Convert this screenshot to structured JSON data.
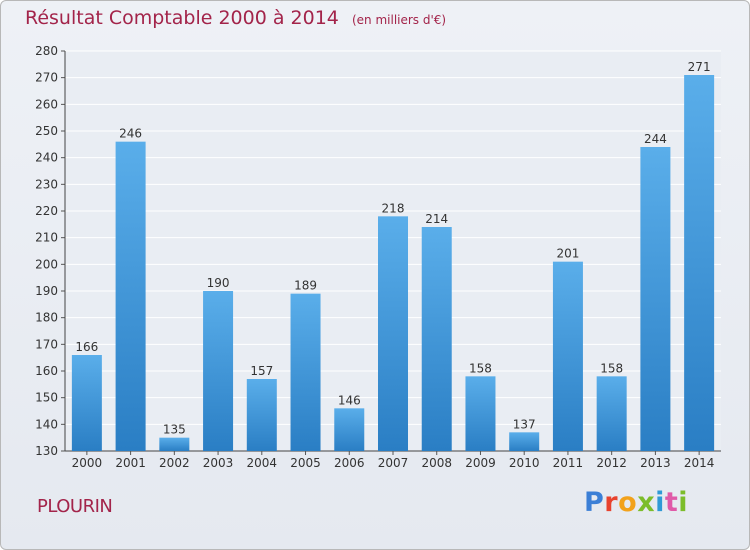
{
  "title": "Résultat Comptable 2000 à 2014",
  "subtitle": "(en milliers d'€)",
  "commune": "PLOURIN",
  "logo_text": "Proxiti",
  "colors": {
    "title": "#a3244a",
    "bar_light": "#5aaeea",
    "bar_dark": "#2a7ec4",
    "grid": "#ffffff",
    "plot_bg": "#e9edf3"
  },
  "chart_data": {
    "type": "bar",
    "categories": [
      "2000",
      "2001",
      "2002",
      "2003",
      "2004",
      "2005",
      "2006",
      "2007",
      "2008",
      "2009",
      "2010",
      "2011",
      "2012",
      "2013",
      "2014"
    ],
    "values": [
      166,
      246,
      135,
      190,
      157,
      189,
      146,
      218,
      214,
      158,
      137,
      201,
      158,
      244,
      271
    ],
    "ylim": [
      130,
      280
    ],
    "yticks": [
      130,
      140,
      150,
      160,
      170,
      180,
      190,
      200,
      210,
      220,
      230,
      240,
      250,
      260,
      270,
      280
    ],
    "grid": true,
    "data_labels": true,
    "xlabel": "",
    "ylabel": ""
  }
}
